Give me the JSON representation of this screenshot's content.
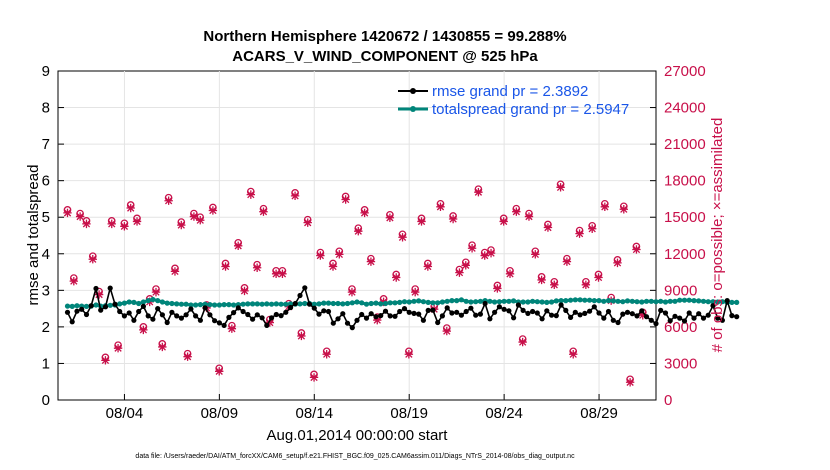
{
  "chart_data": {
    "type": "line",
    "title_line1": "Northern Hemisphere 1420672 / 1430855 = 99.288%",
    "title_line2": "ACARS_V_WIND_COMPONENT @ 525 hPa",
    "ylabel_left": "rmse and totalspread",
    "ylabel_right": "# of obs: o=possible; ×=assimilated",
    "xlabel": "Aug.01,2014 00:00:00 start",
    "footnote": "data file: /Users/raeder/DAI/ATM_forcXX/CAM6_setup/f.e21.FHIST_BGC.f09_025.CAM6assim.011/Diags_NTrS_2014-08/obs_diag_output.nc",
    "x_range_days": [
      0.5,
      32.0
    ],
    "y_left_range": [
      0,
      9
    ],
    "y_right_range": [
      0,
      27000
    ],
    "x_ticks": [
      {
        "day": 4,
        "label": "08/04"
      },
      {
        "day": 9,
        "label": "08/09"
      },
      {
        "day": 14,
        "label": "08/14"
      },
      {
        "day": 19,
        "label": "08/19"
      },
      {
        "day": 24,
        "label": "08/24"
      },
      {
        "day": 29,
        "label": "08/29"
      }
    ],
    "y_left_ticks": [
      "0",
      "1",
      "2",
      "3",
      "4",
      "5",
      "6",
      "7",
      "8",
      "9"
    ],
    "y_right_ticks": [
      "0",
      "3000",
      "6000",
      "9000",
      "12000",
      "15000",
      "18000",
      "21000",
      "24000",
      "27000"
    ],
    "legend": [
      {
        "label": "rmse grand pr = 2.3892",
        "color": "#000000"
      },
      {
        "label": "totalspread grand pr = 2.5947",
        "color": "#00857a"
      }
    ],
    "series": [
      {
        "name": "rmse",
        "axis": "left",
        "color": "#000000",
        "values": [
          2.4,
          2.14,
          2.43,
          2.48,
          2.34,
          2.58,
          3.05,
          2.46,
          2.55,
          3.06,
          2.62,
          2.42,
          2.3,
          2.38,
          2.18,
          2.42,
          2.56,
          2.3,
          2.21,
          2.5,
          2.33,
          2.12,
          2.4,
          2.3,
          2.24,
          2.33,
          2.49,
          2.3,
          2.18,
          2.52,
          2.33,
          2.17,
          2.11,
          2.04,
          2.26,
          2.39,
          2.52,
          2.42,
          2.34,
          2.21,
          2.33,
          2.25,
          2.04,
          2.25,
          2.34,
          2.31,
          2.4,
          2.53,
          2.64,
          2.86,
          3.07,
          2.62,
          2.51,
          2.35,
          2.44,
          2.42,
          2.1,
          2.22,
          2.36,
          2.1,
          1.98,
          2.18,
          2.34,
          2.24,
          2.36,
          2.28,
          2.31,
          2.43,
          2.3,
          2.29,
          2.42,
          2.5,
          2.4,
          2.37,
          2.35,
          2.18,
          2.45,
          2.46,
          2.12,
          2.3,
          2.52,
          2.38,
          2.4,
          2.32,
          2.42,
          2.51,
          2.32,
          2.35,
          2.64,
          2.22,
          2.4,
          2.55,
          2.48,
          2.44,
          2.25,
          2.6,
          2.45,
          2.37,
          2.42,
          2.38,
          2.22,
          2.44,
          2.32,
          2.31,
          2.6,
          2.45,
          2.26,
          2.4,
          2.33,
          2.37,
          2.43,
          2.55,
          2.38,
          2.24,
          2.42,
          2.18,
          2.12,
          2.35,
          2.4,
          2.36,
          2.3,
          2.44,
          2.28,
          2.18,
          2.09,
          2.45,
          2.38,
          2.17,
          2.29,
          2.24,
          2.16,
          2.38,
          2.24,
          2.36,
          2.24,
          2.32,
          2.58,
          2.24,
          2.18,
          2.72,
          2.31,
          2.28
        ]
      },
      {
        "name": "totalspread",
        "axis": "left",
        "color": "#00857a",
        "values": [
          2.57,
          2.56,
          2.58,
          2.57,
          2.56,
          2.57,
          2.6,
          2.57,
          2.58,
          2.59,
          2.6,
          2.63,
          2.65,
          2.68,
          2.67,
          2.64,
          2.68,
          2.72,
          2.75,
          2.72,
          2.68,
          2.65,
          2.64,
          2.63,
          2.62,
          2.62,
          2.6,
          2.6,
          2.61,
          2.62,
          2.61,
          2.6,
          2.6,
          2.61,
          2.61,
          2.6,
          2.61,
          2.62,
          2.63,
          2.63,
          2.63,
          2.62,
          2.63,
          2.62,
          2.63,
          2.62,
          2.62,
          2.63,
          2.62,
          2.63,
          2.64,
          2.64,
          2.62,
          2.63,
          2.65,
          2.65,
          2.64,
          2.64,
          2.63,
          2.64,
          2.66,
          2.68,
          2.66,
          2.62,
          2.64,
          2.65,
          2.63,
          2.64,
          2.66,
          2.66,
          2.67,
          2.69,
          2.68,
          2.7,
          2.71,
          2.69,
          2.67,
          2.66,
          2.66,
          2.68,
          2.7,
          2.72,
          2.72,
          2.74,
          2.7,
          2.68,
          2.69,
          2.7,
          2.72,
          2.7,
          2.68,
          2.69,
          2.7,
          2.7,
          2.71,
          2.68,
          2.68,
          2.68,
          2.7,
          2.69,
          2.68,
          2.67,
          2.68,
          2.71,
          2.72,
          2.72,
          2.73,
          2.74,
          2.74,
          2.73,
          2.73,
          2.72,
          2.72,
          2.7,
          2.72,
          2.71,
          2.7,
          2.69,
          2.71,
          2.7,
          2.69,
          2.68,
          2.7,
          2.7,
          2.69,
          2.7,
          2.68,
          2.7,
          2.7,
          2.73,
          2.73,
          2.73,
          2.72,
          2.71,
          2.7,
          2.69,
          2.69,
          2.68,
          2.69,
          2.67,
          2.67,
          2.67
        ]
      },
      {
        "name": "obs_possible",
        "axis": "right",
        "color": "#c8104a",
        "marker": "circle",
        "values": [
          15600,
          10000,
          15300,
          14700,
          11800,
          8900,
          3500,
          14700,
          4500,
          14500,
          16000,
          14900,
          6000,
          8300,
          9100,
          4600,
          16600,
          10800,
          14600,
          3800,
          15300,
          15000,
          7800,
          15800,
          2600,
          11200,
          6100,
          12900,
          9200,
          17100,
          11100,
          15700,
          6600,
          10600,
          10600,
          7900,
          17000,
          5500,
          14800,
          2100,
          12100,
          4000,
          11200,
          12200,
          16700,
          9100,
          14100,
          15600,
          11600,
          6800,
          8300,
          15200,
          10300,
          13600,
          4000,
          9100,
          14900,
          11200,
          7700,
          16100,
          5900,
          15100,
          10700,
          11300,
          12700,
          17300,
          12100,
          12300,
          9400,
          14900,
          10600,
          15700,
          5000,
          15300,
          12200,
          10100,
          14400,
          9700,
          17700,
          11600,
          4000,
          13900,
          9700,
          14300,
          10300,
          16100,
          8400,
          11500,
          15900,
          1700,
          12600,
          7200
        ]
      },
      {
        "name": "obs_assimilated",
        "axis": "right",
        "color": "#c8104a",
        "marker": "x",
        "values": [
          15600,
          10000,
          15300,
          14700,
          11800,
          8900,
          3500,
          14700,
          4500,
          14500,
          16000,
          14900,
          6000,
          8300,
          9100,
          4600,
          16600,
          10800,
          14600,
          3800,
          15300,
          15000,
          7800,
          15800,
          2600,
          11200,
          6100,
          12900,
          9200,
          17100,
          11100,
          15700,
          6600,
          10600,
          10600,
          7900,
          17000,
          5500,
          14800,
          2100,
          12100,
          4000,
          11200,
          12200,
          16700,
          9100,
          14100,
          15600,
          11600,
          6800,
          8300,
          15200,
          10300,
          13600,
          4000,
          9100,
          14900,
          11200,
          7700,
          16100,
          5900,
          15100,
          10700,
          11300,
          12700,
          17300,
          12100,
          12300,
          9400,
          14900,
          10600,
          15700,
          5000,
          15300,
          12200,
          10100,
          14400,
          9700,
          17700,
          11600,
          4000,
          13900,
          9700,
          14300,
          10300,
          16100,
          8400,
          11500,
          15900,
          1700,
          12600,
          7200
        ]
      }
    ]
  }
}
